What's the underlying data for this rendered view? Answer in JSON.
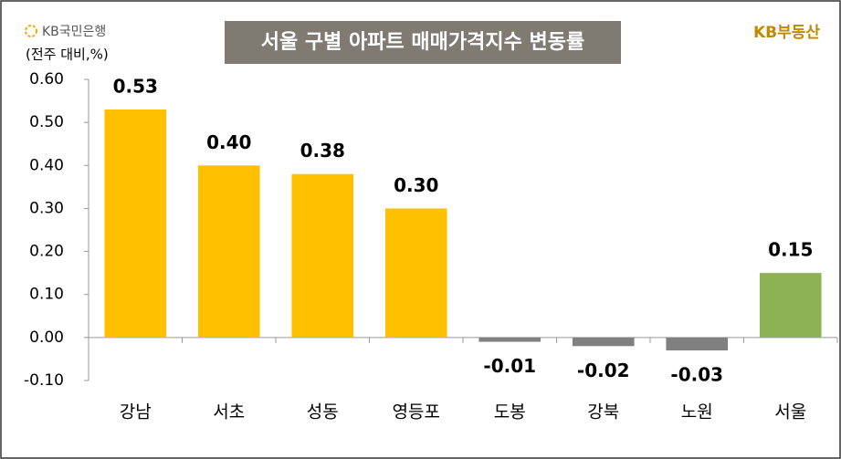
{
  "chart_data": {
    "type": "bar",
    "title": "서울 구별 아파트 매매가격지수 변동률",
    "subtitle": "(전주 대비,%)",
    "brand_left": "KB국민은행",
    "brand_right": "KB부동산",
    "categories": [
      "강남",
      "서초",
      "성동",
      "영등포",
      "도봉",
      "강북",
      "노원",
      "서울"
    ],
    "values": [
      0.53,
      0.4,
      0.38,
      0.3,
      -0.01,
      -0.02,
      -0.03,
      0.15
    ],
    "value_labels": [
      "0.53",
      "0.40",
      "0.38",
      "0.30",
      "-0.01",
      "-0.02",
      "-0.03",
      "0.15"
    ],
    "colors": [
      "#FFC000",
      "#FFC000",
      "#FFC000",
      "#FFC000",
      "#808080",
      "#808080",
      "#808080",
      "#8DB255"
    ],
    "ylim": [
      -0.1,
      0.6
    ],
    "yticks": [
      {
        "value": -0.1,
        "label": "-0.10"
      },
      {
        "value": 0,
        "label": "0.00"
      },
      {
        "value": 0.1,
        "label": "0.10"
      },
      {
        "value": 0.2,
        "label": "0.20"
      },
      {
        "value": 0.3,
        "label": "0.30"
      },
      {
        "value": 0.4,
        "label": "0.40"
      },
      {
        "value": 0.5,
        "label": "0.50"
      },
      {
        "value": 0.6,
        "label": "0.60"
      }
    ],
    "grid": false
  }
}
